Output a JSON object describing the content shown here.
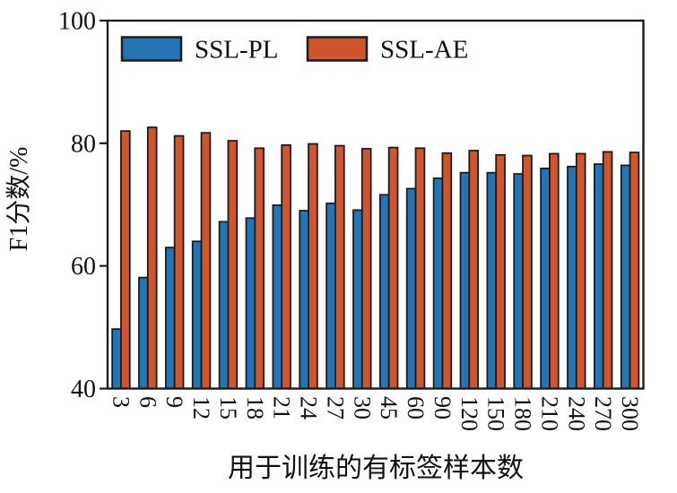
{
  "chart_data": {
    "type": "bar",
    "title": "",
    "xlabel": "用于训练的有标签样本数",
    "ylabel": "F1分数/%",
    "ylim": [
      40,
      100
    ],
    "yticks": [
      40,
      60,
      80,
      100
    ],
    "grid": false,
    "legend_position": "upper-left-inside",
    "categories": [
      "3",
      "6",
      "9",
      "12",
      "15",
      "18",
      "21",
      "24",
      "27",
      "30",
      "45",
      "60",
      "90",
      "120",
      "150",
      "180",
      "210",
      "240",
      "270",
      "300"
    ],
    "series": [
      {
        "name": "SSL-PL",
        "color": "#2475b6",
        "values": [
          49.7,
          58.1,
          63.0,
          64.0,
          67.2,
          67.8,
          69.9,
          69.0,
          70.2,
          69.1,
          71.6,
          72.6,
          74.3,
          75.2,
          75.2,
          75.0,
          75.9,
          76.2,
          76.6,
          76.4
        ]
      },
      {
        "name": "SSL-AE",
        "color": "#d0542c",
        "values": [
          82.0,
          82.6,
          81.2,
          81.7,
          80.4,
          79.2,
          79.7,
          79.9,
          79.6,
          79.1,
          79.3,
          79.2,
          78.4,
          78.8,
          78.1,
          78.0,
          78.3,
          78.3,
          78.6,
          78.5
        ]
      }
    ],
    "bar_edge_color": "#1c1c1c",
    "axis_color": "#1c1c1c"
  }
}
